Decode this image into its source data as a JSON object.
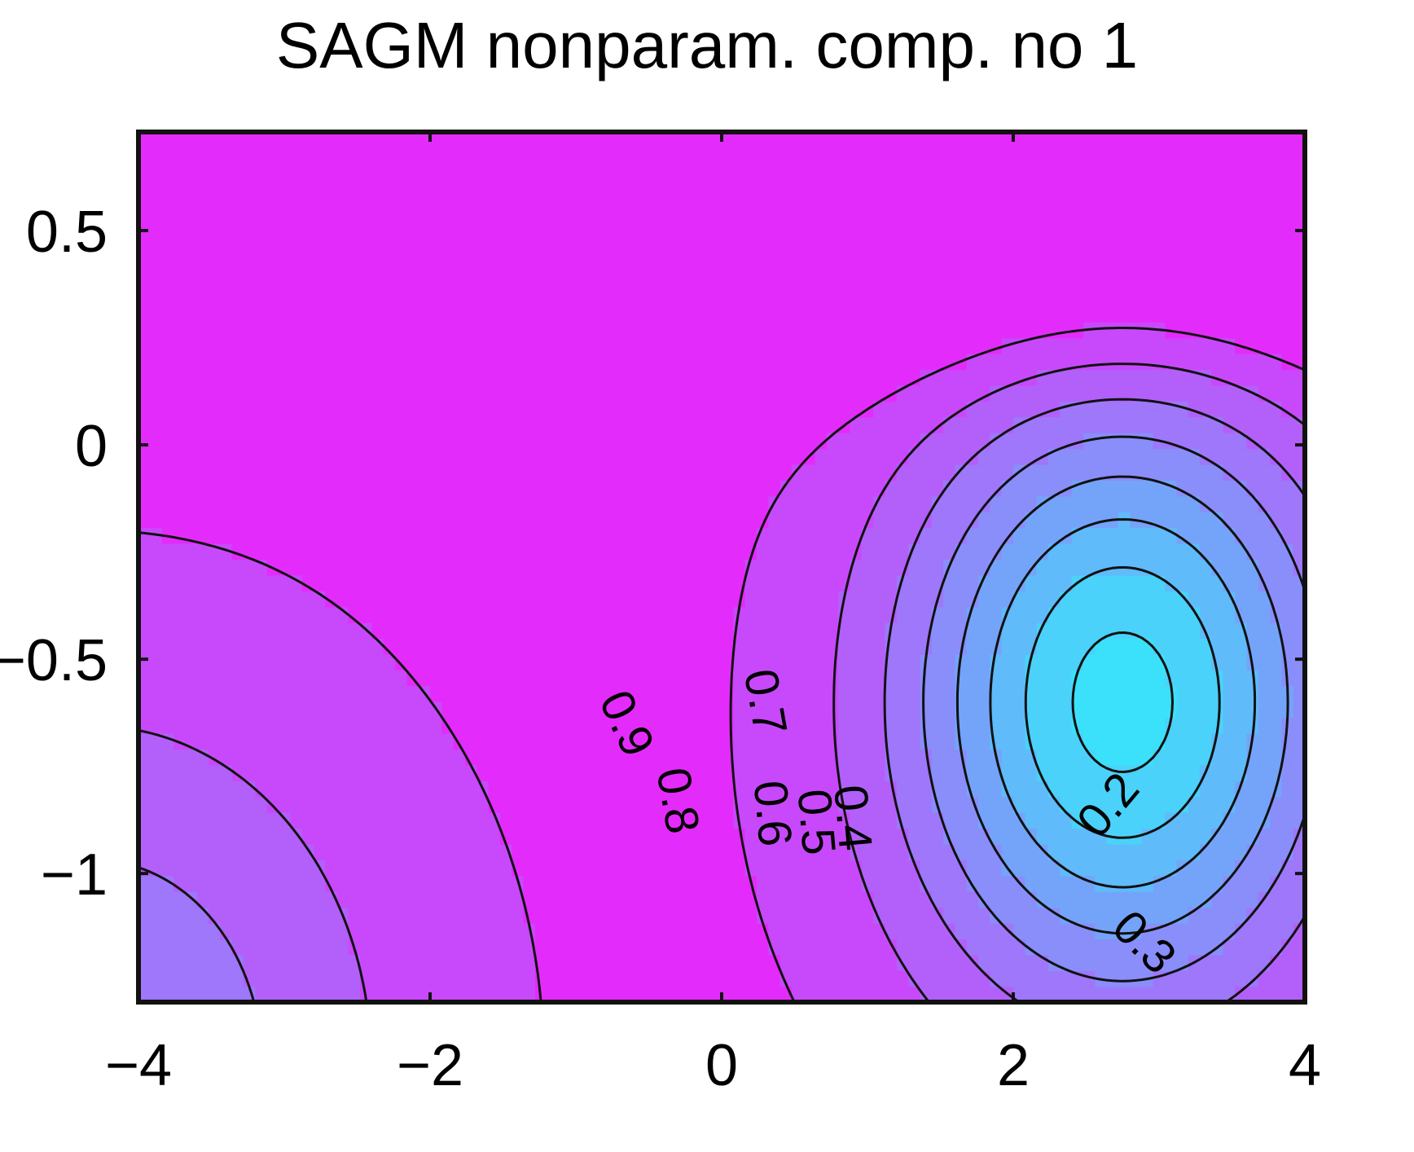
{
  "chart_data": {
    "type": "contour",
    "title": "SAGM nonparam. comp. no 1",
    "xlabel": "",
    "ylabel": "",
    "xlim": [
      -4,
      4
    ],
    "ylim": [
      -1.3,
      0.73
    ],
    "x_ticks": [
      -4,
      -2,
      0,
      2,
      4
    ],
    "x_tick_labels": [
      "−4",
      "−2",
      "0",
      "2",
      "4"
    ],
    "y_ticks": [
      0.5,
      0,
      -0.5,
      -1
    ],
    "y_tick_labels": [
      "0.5",
      "0",
      "−0.5",
      "−1"
    ],
    "grid": false,
    "contour_levels": [
      0.2,
      0.3,
      0.4,
      0.5,
      0.6,
      0.7,
      0.8,
      0.9
    ],
    "contour_labels": [
      {
        "text": "0.9",
        "x": -0.65,
        "y": -0.65,
        "rotation": 65
      },
      {
        "text": "0.8",
        "x": -0.3,
        "y": -0.83,
        "rotation": 80
      },
      {
        "text": "0.7",
        "x": 0.3,
        "y": -0.6,
        "rotation": 80
      },
      {
        "text": "0.6",
        "x": 0.35,
        "y": -0.86,
        "rotation": 85
      },
      {
        "text": "0.5",
        "x": 0.65,
        "y": -0.88,
        "rotation": 85
      },
      {
        "text": "0.4",
        "x": 0.9,
        "y": -0.87,
        "rotation": 85
      },
      {
        "text": "0.2",
        "x": 2.65,
        "y": -0.84,
        "rotation": -50
      },
      {
        "text": "0.3",
        "x": 2.9,
        "y": -1.16,
        "rotation": 45
      }
    ],
    "colors": {
      "high": "#e32cfb",
      "low": "#37e6fa",
      "line": "#111111"
    }
  }
}
